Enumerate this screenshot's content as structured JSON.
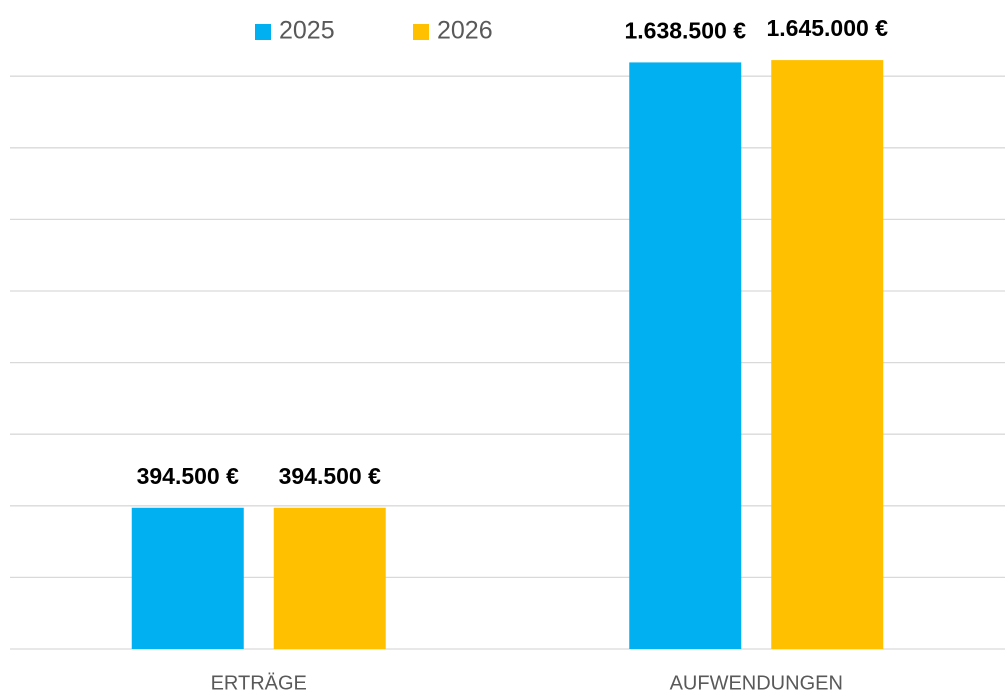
{
  "chart_data": {
    "type": "bar",
    "categories": [
      "ERTRÄGE",
      "AUFWENDUNGEN"
    ],
    "series": [
      {
        "name": "2025",
        "color": "#00b0f0",
        "values": [
          394500,
          1638500
        ],
        "value_labels": [
          "394.500 €",
          "1.638.500 €"
        ]
      },
      {
        "name": "2026",
        "color": "#ffc000",
        "values": [
          394500,
          1645000
        ],
        "value_labels": [
          "394.500 €",
          "1.645.000 €"
        ]
      }
    ],
    "ylim": [
      0,
      1800000
    ],
    "yticks": [
      0,
      200000,
      400000,
      600000,
      800000,
      1000000,
      1200000,
      1400000,
      1600000
    ],
    "grid": true,
    "legend": "top"
  }
}
